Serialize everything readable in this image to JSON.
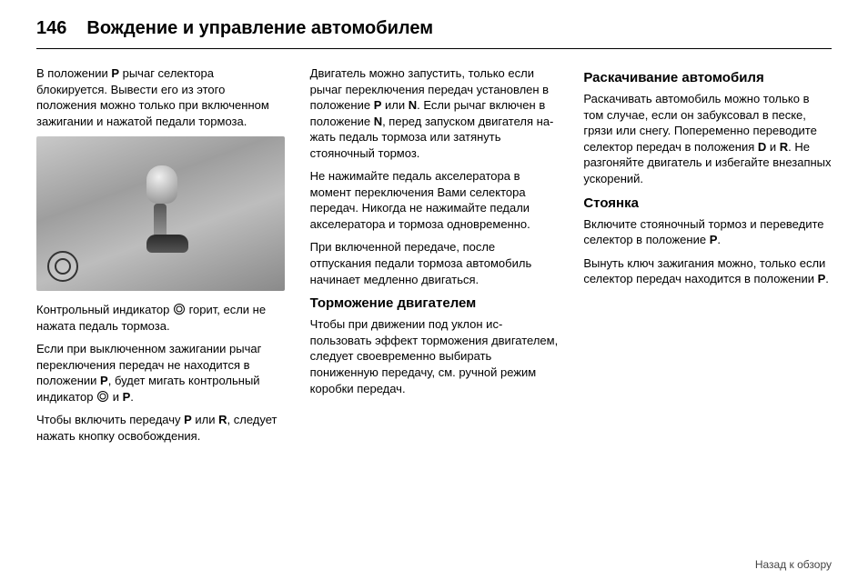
{
  "page_number": "146",
  "page_title": "Вождение и управление автомобилем",
  "col1": {
    "p1a": "В положении ",
    "p1b": "P",
    "p1c": " рычаг селектора блокируется. Вывести его из этого положения можно только при вклю­ченном зажигании и нажатой пе­дали тормоза.",
    "p2a": "Контрольный индикатор ",
    "p2b": " горит, если не нажата педаль тормоза.",
    "p3a": "Если при выключенном зажигании рычаг переключения передач не находится в положении ",
    "p3b": "P",
    "p3c": ", будет мигать контрольный индикатор ",
    "p3d": " и ",
    "p3e": "P",
    "p3f": ".",
    "p4a": "Чтобы включить передачу ",
    "p4b": "P",
    "p4c": " или ",
    "p4d": "R",
    "p4e": ", следует нажать кнопку освобожде­ния."
  },
  "col2": {
    "p1a": "Двигатель можно запустить, только если рычаг переключения передач установлен в положение ",
    "p1b": "P",
    "p1c": " или ",
    "p1d": "N",
    "p1e": ". Если рычаг включен в положение ",
    "p1f": "N",
    "p1g": ", перед запуском двигателя на­жать педаль тормоза или затянуть стояночный тормоз.",
    "p2": "Не нажимайте педаль акселера­тора в момент переключения Вами селектора передач. Никогда не на­жимайте педали акселератора и тормоза одновременно.",
    "p3": "При включенной передаче, после отпускания педали тормоза авто­мобиль начинает медленно дви­гаться.",
    "h1": "Торможение двигателем",
    "p4": "Чтобы при движении под уклон ис­пользовать эффект торможения двигателем, следует своевре­менно выбирать пониженную пере­дачу, см. ручной режим коробки пе­редач."
  },
  "col3": {
    "h1": "Раскачивание автомобиля",
    "p1a": "Раскачивать автомобиль можно только в том случае, если он забук­совал в песке, грязи или снегу. По­переменно переводите селектор передач в положения ",
    "p1b": "D",
    "p1c": " и ",
    "p1d": "R",
    "p1e": ". Не раз­гоняйте двигатель и избегайте вне­запных ускорений.",
    "h2": "Стоянка",
    "p2a": "Включите стояночный тормоз и пе­реведите селектор в положение ",
    "p2b": "P",
    "p2c": ".",
    "p3a": "Вынуть ключ зажигания можно, только если селектор передач на­ходится в положении ",
    "p3b": "P",
    "p3c": "."
  },
  "footer": "Назад к обзору"
}
